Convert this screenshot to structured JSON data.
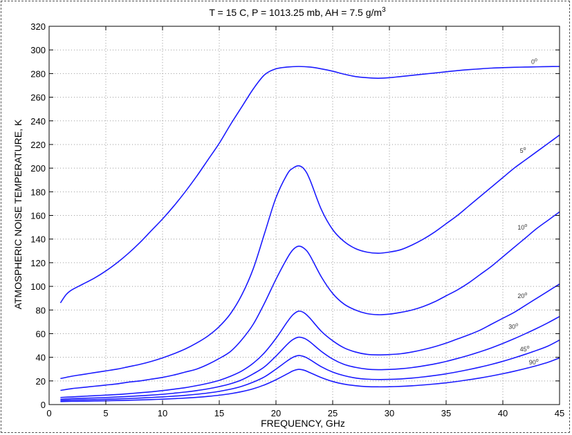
{
  "chart_data": {
    "type": "line",
    "title": "T = 15 C, P = 1013.25 mb, AH = 7.5 g/m",
    "title_sup": "3",
    "xlabel": "FREQUENCY, GHz",
    "ylabel": "ATMOSPHERIC NOISE TEMPERATURE, K",
    "xlim": [
      0,
      45
    ],
    "ylim": [
      0,
      320
    ],
    "xticks": [
      0,
      5,
      10,
      15,
      20,
      25,
      30,
      35,
      40,
      45
    ],
    "yticks": [
      0,
      20,
      40,
      60,
      80,
      100,
      120,
      140,
      160,
      180,
      200,
      220,
      240,
      260,
      280,
      300,
      320
    ],
    "grid": true,
    "line_color": "#1a1aff",
    "series": [
      {
        "name": "0",
        "label_x": 42.5,
        "label_y": 288,
        "x": [
          1,
          1.5,
          2,
          3,
          4,
          5,
          6,
          7,
          8,
          9,
          10,
          11,
          12,
          13,
          14,
          15,
          16,
          17,
          18,
          19,
          20,
          21,
          22,
          23,
          24,
          25,
          26,
          27,
          28,
          29,
          30,
          31,
          32,
          33,
          34,
          35,
          36,
          37,
          38,
          39,
          40,
          41,
          42,
          43,
          44,
          45
        ],
        "y": [
          86,
          93,
          97,
          102,
          107,
          113,
          120,
          128,
          137,
          147,
          157,
          168,
          180,
          193,
          207,
          221,
          237,
          252,
          267,
          279,
          284,
          285.5,
          286,
          285.5,
          284,
          282,
          279.5,
          277.5,
          276.5,
          276,
          276.5,
          277.5,
          278.5,
          279.5,
          280.5,
          281.5,
          282.5,
          283.3,
          284,
          284.6,
          285,
          285.3,
          285.5,
          285.7,
          285.9,
          286
        ]
      },
      {
        "name": "5",
        "label_x": 41.5,
        "label_y": 213,
        "x": [
          1,
          2,
          3,
          4,
          5,
          6,
          7,
          8,
          9,
          10,
          11,
          12,
          13,
          14,
          15,
          16,
          17,
          18,
          19,
          20,
          21,
          21.5,
          22,
          22.5,
          23,
          24,
          25,
          26,
          27,
          28,
          29,
          30,
          31,
          32,
          33,
          34,
          35,
          36,
          37,
          38,
          39,
          40,
          41,
          42,
          43,
          44,
          45
        ],
        "y": [
          22,
          24,
          25.5,
          27,
          28.5,
          30,
          32,
          34,
          36.5,
          39.5,
          43,
          47,
          52,
          58,
          66,
          77,
          93,
          115,
          145,
          175,
          195,
          200,
          202,
          199,
          190,
          165,
          148,
          138,
          132,
          129,
          128,
          129,
          131,
          135,
          140,
          146,
          153,
          160,
          168,
          176,
          184,
          192,
          200,
          207,
          214,
          221,
          228
        ]
      },
      {
        "name": "10",
        "label_x": 41.3,
        "label_y": 148,
        "x": [
          1,
          2,
          3,
          4,
          5,
          6,
          7,
          8,
          9,
          10,
          11,
          12,
          13,
          14,
          15,
          16,
          17,
          18,
          19,
          20,
          21,
          21.5,
          22,
          22.5,
          23,
          24,
          25,
          26,
          27,
          28,
          29,
          30,
          31,
          32,
          33,
          34,
          35,
          36,
          37,
          38,
          39,
          40,
          41,
          42,
          43,
          44,
          45
        ],
        "y": [
          12,
          13.5,
          14.5,
          15.5,
          16.5,
          17.5,
          19,
          20,
          21.5,
          23,
          25,
          27.5,
          30,
          34,
          39,
          45,
          55,
          68,
          86,
          106,
          124,
          131,
          134,
          132,
          126,
          108,
          94,
          85,
          80,
          77,
          76,
          76.5,
          78,
          80,
          83,
          87,
          92,
          97,
          103,
          110,
          117,
          125,
          133,
          141,
          149,
          156,
          163
        ]
      },
      {
        "name": "20",
        "label_x": 41.3,
        "label_y": 90,
        "x": [
          1,
          2,
          3,
          4,
          5,
          6,
          7,
          8,
          9,
          10,
          11,
          12,
          13,
          14,
          15,
          16,
          17,
          18,
          19,
          20,
          21,
          21.5,
          22,
          22.5,
          23,
          24,
          25,
          26,
          27,
          28,
          29,
          30,
          31,
          32,
          33,
          34,
          35,
          36,
          37,
          38,
          39,
          40,
          41,
          42,
          43,
          44,
          45
        ],
        "y": [
          6,
          6.5,
          7,
          7.5,
          8,
          8.5,
          9.2,
          10,
          10.8,
          11.8,
          13,
          14.3,
          16,
          18,
          20.5,
          24,
          28.5,
          35,
          44,
          56,
          70,
          76,
          79,
          77.5,
          73,
          62,
          54,
          48,
          44.5,
          42.5,
          42,
          42.3,
          43,
          44.5,
          46.5,
          49,
          52,
          55.5,
          59,
          63,
          68,
          73,
          78,
          84,
          90,
          96,
          102
        ]
      },
      {
        "name": "30",
        "label_x": 40.5,
        "label_y": 64,
        "x": [
          1,
          2,
          3,
          4,
          5,
          6,
          7,
          8,
          9,
          10,
          11,
          12,
          13,
          14,
          15,
          16,
          17,
          18,
          19,
          20,
          21,
          21.5,
          22,
          22.5,
          23,
          24,
          25,
          26,
          27,
          28,
          29,
          30,
          31,
          32,
          33,
          34,
          35,
          36,
          37,
          38,
          39,
          40,
          41,
          42,
          43,
          44,
          45
        ],
        "y": [
          4.5,
          5,
          5.3,
          5.6,
          6,
          6.4,
          6.9,
          7.4,
          8,
          8.7,
          9.6,
          10.6,
          11.8,
          13.3,
          15.2,
          17.6,
          21,
          26,
          32,
          41,
          51,
          55,
          57,
          56,
          53,
          45,
          38.5,
          34,
          31.5,
          30,
          29.5,
          29.7,
          30.3,
          31.3,
          32.7,
          34.4,
          36.5,
          39,
          41.7,
          44.7,
          48,
          51.7,
          55.7,
          60,
          64.5,
          69.3,
          74.5
        ]
      },
      {
        "name": "45",
        "label_x": 41.5,
        "label_y": 45,
        "x": [
          1,
          2,
          3,
          4,
          5,
          6,
          7,
          8,
          9,
          10,
          11,
          12,
          13,
          14,
          15,
          16,
          17,
          18,
          19,
          20,
          21,
          21.5,
          22,
          22.5,
          23,
          24,
          25,
          26,
          27,
          28,
          29,
          30,
          31,
          32,
          33,
          34,
          35,
          36,
          37,
          38,
          39,
          40,
          41,
          42,
          43,
          44,
          45
        ],
        "y": [
          3.5,
          3.8,
          4,
          4.2,
          4.5,
          4.8,
          5.1,
          5.5,
          6,
          6.5,
          7.1,
          7.8,
          8.7,
          9.8,
          11.2,
          13,
          15.5,
          19,
          23.5,
          30,
          37,
          40,
          41.5,
          40.5,
          38,
          32,
          27.5,
          24.5,
          22.5,
          21.5,
          21.2,
          21.3,
          21.7,
          22.4,
          23.4,
          24.6,
          26,
          27.7,
          29.6,
          31.7,
          34,
          36.6,
          39.5,
          42.6,
          45.9,
          49.6,
          54.6
        ]
      },
      {
        "name": "90",
        "label_x": 42.3,
        "label_y": 34,
        "x": [
          1,
          2,
          3,
          4,
          5,
          6,
          7,
          8,
          9,
          10,
          11,
          12,
          13,
          14,
          15,
          16,
          17,
          18,
          19,
          20,
          21,
          21.5,
          22,
          22.5,
          23,
          24,
          25,
          26,
          27,
          28,
          29,
          30,
          31,
          32,
          33,
          34,
          35,
          36,
          37,
          38,
          39,
          40,
          41,
          42,
          43,
          44,
          45
        ],
        "y": [
          2.5,
          2.7,
          2.8,
          3,
          3.2,
          3.4,
          3.6,
          3.9,
          4.2,
          4.6,
          5,
          5.5,
          6.1,
          6.9,
          7.9,
          9.2,
          11,
          13.4,
          16.7,
          21,
          26,
          28.5,
          29.8,
          29,
          27,
          22.8,
          19.5,
          17.3,
          16,
          15.2,
          15,
          15.1,
          15.4,
          15.9,
          16.6,
          17.4,
          18.4,
          19.6,
          21,
          22.5,
          24.2,
          26.1,
          28.2,
          30.5,
          33,
          35.8,
          39.5
        ]
      }
    ]
  }
}
